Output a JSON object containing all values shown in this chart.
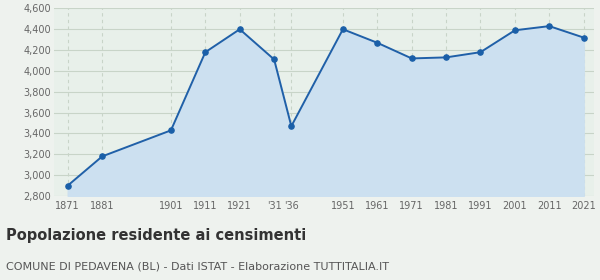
{
  "years": [
    1871,
    1881,
    1901,
    1911,
    1921,
    1931,
    1936,
    1951,
    1961,
    1971,
    1981,
    1991,
    2001,
    2011,
    2021
  ],
  "x_labels": [
    "1871",
    "1881",
    "1901",
    "1911",
    "1921",
    "'31",
    "'36",
    "1951",
    "1961",
    "1971",
    "1981",
    "1991",
    "2001",
    "2011",
    "2021"
  ],
  "values": [
    2900,
    3180,
    3430,
    4180,
    4400,
    4110,
    3470,
    4400,
    4270,
    4120,
    4130,
    4180,
    4390,
    4430,
    4320
  ],
  "line_color": "#2060a8",
  "fill_color": "#cce0f0",
  "marker_color": "#1a5fa8",
  "background_color": "#eef2ee",
  "chart_bg_color": "#e8f0ea",
  "grid_color": "#c8d4c8",
  "ylim": [
    2800,
    4600
  ],
  "yticks": [
    2800,
    3000,
    3200,
    3400,
    3600,
    3800,
    4000,
    4200,
    4400,
    4600
  ],
  "title": "Popolazione residente ai censimenti",
  "subtitle": "COMUNE DI PEDAVENA (BL) - Dati ISTAT - Elaborazione TUTTITALIA.IT",
  "title_fontsize": 10.5,
  "subtitle_fontsize": 8.0
}
